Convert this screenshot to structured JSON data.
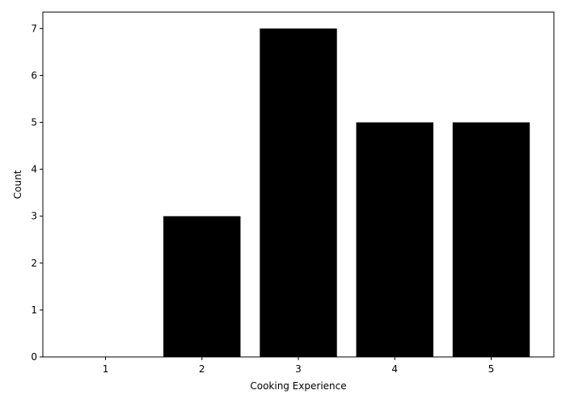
{
  "chart_data": {
    "type": "bar",
    "categories": [
      "1",
      "2",
      "3",
      "4",
      "5"
    ],
    "values": [
      0,
      3,
      7,
      5,
      5
    ],
    "xlabel": "Cooking Experience",
    "ylabel": "Count",
    "ylim": [
      0,
      7.35
    ],
    "yticks": [
      "0",
      "1",
      "2",
      "3",
      "4",
      "5",
      "6",
      "7"
    ],
    "bar_color": "#000000",
    "grid": false,
    "legend": "none"
  }
}
